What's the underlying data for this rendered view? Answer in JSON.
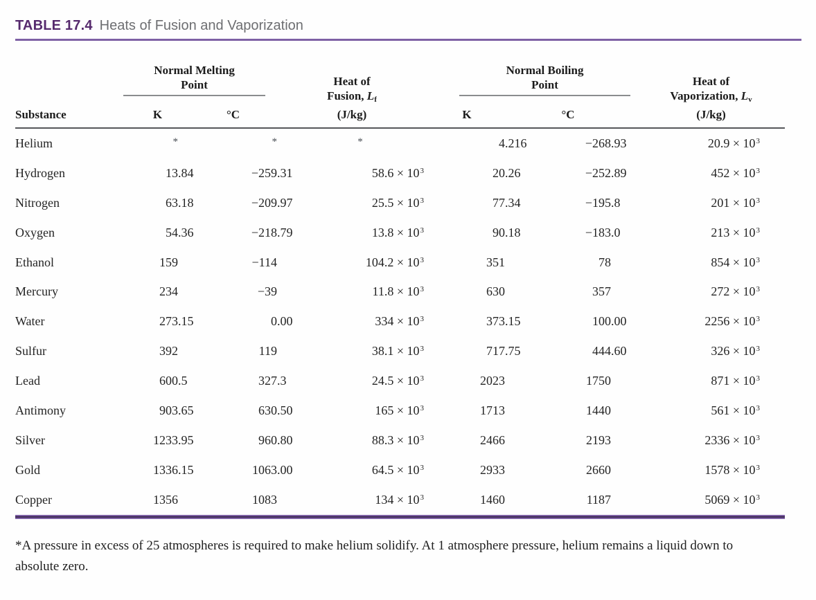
{
  "title": {
    "label": "TABLE 17.4",
    "text": "Heats of Fusion and Vaporization"
  },
  "columns": {
    "substance": "Substance",
    "melting_group_line1": "Normal Melting",
    "melting_group_line2": "Point",
    "boiling_group_line1": "Normal Boiling",
    "boiling_group_line2": "Point",
    "k_label": "K",
    "c_label": "°C",
    "fusion_line1": "Heat of",
    "fusion_line2_pre": "Fusion, ",
    "fusion_symbol": "L",
    "fusion_symbol_sub": "f",
    "fusion_line3": "(J/kg)",
    "vap_line1": "Heat of",
    "vap_line2_pre": "Vaporization, ",
    "vap_symbol": "L",
    "vap_symbol_sub": "v",
    "vap_line3": "(J/kg)"
  },
  "notation": {
    "times": "×",
    "base": "10",
    "power": "3",
    "asterisk": "*"
  },
  "rows": [
    {
      "substance": "Helium",
      "melting_k": "*",
      "melting_c": "*",
      "heat_of_fusion": "*",
      "boiling_k": "4.216",
      "boiling_c": "−268.93",
      "heat_of_vaporization": "20.9"
    },
    {
      "substance": "Hydrogen",
      "melting_k": "13.84",
      "melting_c": "−259.31",
      "heat_of_fusion": "58.6",
      "boiling_k": "20.26",
      "boiling_c": "−252.89",
      "heat_of_vaporization": "452"
    },
    {
      "substance": "Nitrogen",
      "melting_k": "63.18",
      "melting_c": "−209.97",
      "heat_of_fusion": "25.5",
      "boiling_k": "77.34",
      "boiling_c": "−195.8",
      "heat_of_vaporization": "201"
    },
    {
      "substance": "Oxygen",
      "melting_k": "54.36",
      "melting_c": "−218.79",
      "heat_of_fusion": "13.8",
      "boiling_k": "90.18",
      "boiling_c": "−183.0",
      "heat_of_vaporization": "213"
    },
    {
      "substance": "Ethanol",
      "melting_k": "159",
      "melting_c": "−114",
      "heat_of_fusion": "104.2",
      "boiling_k": "351",
      "boiling_c": "78",
      "heat_of_vaporization": "854"
    },
    {
      "substance": "Mercury",
      "melting_k": "234",
      "melting_c": "−39",
      "heat_of_fusion": "11.8",
      "boiling_k": "630",
      "boiling_c": "357",
      "heat_of_vaporization": "272"
    },
    {
      "substance": "Water",
      "melting_k": "273.15",
      "melting_c": "0.00",
      "heat_of_fusion": "334",
      "boiling_k": "373.15",
      "boiling_c": "100.00",
      "heat_of_vaporization": "2256"
    },
    {
      "substance": "Sulfur",
      "melting_k": "392",
      "melting_c": "119",
      "heat_of_fusion": "38.1",
      "boiling_k": "717.75",
      "boiling_c": "444.60",
      "heat_of_vaporization": "326"
    },
    {
      "substance": "Lead",
      "melting_k": "600.5",
      "melting_c": "327.3",
      "heat_of_fusion": "24.5",
      "boiling_k": "2023",
      "boiling_c": "1750",
      "heat_of_vaporization": "871"
    },
    {
      "substance": "Antimony",
      "melting_k": "903.65",
      "melting_c": "630.50",
      "heat_of_fusion": "165",
      "boiling_k": "1713",
      "boiling_c": "1440",
      "heat_of_vaporization": "561"
    },
    {
      "substance": "Silver",
      "melting_k": "1233.95",
      "melting_c": "960.80",
      "heat_of_fusion": "88.3",
      "boiling_k": "2466",
      "boiling_c": "2193",
      "heat_of_vaporization": "2336"
    },
    {
      "substance": "Gold",
      "melting_k": "1336.15",
      "melting_c": "1063.00",
      "heat_of_fusion": "64.5",
      "boiling_k": "2933",
      "boiling_c": "2660",
      "heat_of_vaporization": "1578"
    },
    {
      "substance": "Copper",
      "melting_k": "1356",
      "melting_c": "1083",
      "heat_of_fusion": "134",
      "boiling_k": "1460",
      "boiling_c": "1187",
      "heat_of_vaporization": "5069"
    }
  ],
  "footnote": "*A pressure in excess of 25 atmospheres is required to make helium solidify. At 1 atmosphere pressure, helium remains a liquid down to absolute zero.",
  "colors": {
    "table_label_purple": "#562a6d",
    "title_gray": "#6d6e71",
    "rule_purple": "#7e61a5",
    "rule_purple_dark": "#3c2752",
    "subrule_gray": "#8a8c8e",
    "header_rule_gray": "#55565a"
  }
}
